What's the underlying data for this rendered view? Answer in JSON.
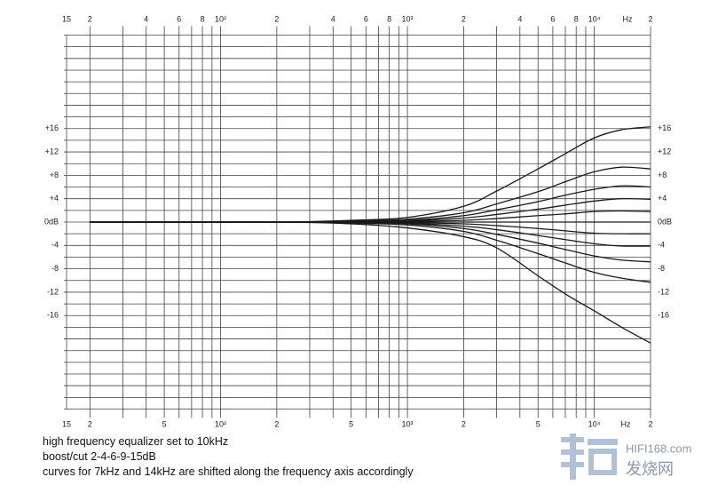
{
  "chart_data": {
    "type": "line",
    "xscale": "log",
    "xlim": [
      15,
      20000
    ],
    "ylim": [
      -32,
      32
    ],
    "xticks": [
      15,
      {
        "value": 20,
        "label": "2"
      },
      {
        "value": 40,
        "label": "4"
      },
      {
        "value": 60,
        "label": "6"
      },
      {
        "value": 80,
        "label": "8"
      },
      {
        "value": 100,
        "label": "10²"
      },
      {
        "value": 200,
        "label": "2"
      },
      {
        "value": 400,
        "label": "4"
      },
      {
        "value": 600,
        "label": "6"
      },
      {
        "value": 800,
        "label": "8"
      },
      {
        "value": 1000,
        "label": "10³"
      },
      {
        "value": 2000,
        "label": "2"
      },
      {
        "value": 4000,
        "label": "4"
      },
      {
        "value": 6000,
        "label": "6"
      },
      {
        "value": 8000,
        "label": "8"
      },
      {
        "value": 10000,
        "label": "10⁴"
      },
      {
        "value": 20000,
        "label": "2"
      }
    ],
    "xticks_bottom": [
      15,
      {
        "value": 20,
        "label": "2"
      },
      {
        "value": 50,
        "label": "5"
      },
      {
        "value": 100,
        "label": "10²"
      },
      {
        "value": 200,
        "label": "2"
      },
      {
        "value": 500,
        "label": "5"
      },
      {
        "value": 1000,
        "label": "10³"
      },
      {
        "value": 2000,
        "label": "2"
      },
      {
        "value": 5000,
        "label": "5"
      },
      {
        "value": 10000,
        "label": "10⁴"
      },
      {
        "value": 20000,
        "label": "2"
      }
    ],
    "x_unit": "Hz",
    "yticks": [
      {
        "value": 16,
        "label": "+16"
      },
      {
        "value": 12,
        "label": "+12"
      },
      {
        "value": 8,
        "label": "+8"
      },
      {
        "value": 4,
        "label": "+4"
      },
      {
        "value": 0,
        "label": "0dB"
      },
      -4,
      -8,
      -12,
      -16
    ],
    "xgrid": [
      20,
      30,
      40,
      50,
      60,
      70,
      80,
      90,
      100,
      200,
      300,
      400,
      500,
      600,
      700,
      800,
      900,
      1000,
      2000,
      3000,
      4000,
      5000,
      6000,
      7000,
      8000,
      9000,
      10000,
      20000
    ],
    "ygrid": [
      -32,
      -30,
      -28,
      -26,
      -24,
      -22,
      -20,
      -18,
      -16,
      -14,
      -12,
      -10,
      -8,
      -6,
      -4,
      -2,
      0,
      2,
      4,
      6,
      8,
      10,
      12,
      14,
      16,
      18,
      20,
      22,
      24,
      26,
      28,
      30,
      32
    ],
    "grid": true,
    "color": "#1a1a1a",
    "x": [
      20,
      200,
      500,
      1000,
      2000,
      3000,
      5000,
      7000,
      10000,
      14000,
      20000
    ],
    "series": [
      {
        "values": [
          0,
          0,
          0.3,
          0.8,
          2.7,
          5.3,
          9.1,
          11.7,
          14.4,
          15.8,
          16.3
        ]
      },
      {
        "values": [
          0,
          0,
          0.2,
          0.5,
          1.6,
          3.1,
          5.2,
          6.9,
          8.6,
          9.4,
          9.1
        ]
      },
      {
        "values": [
          0,
          0,
          0.1,
          0.3,
          1.1,
          2.1,
          3.5,
          4.6,
          5.6,
          6.2,
          6.0
        ]
      },
      {
        "values": [
          0,
          0,
          0.1,
          0.2,
          0.7,
          1.3,
          2.2,
          2.9,
          3.6,
          4.0,
          3.9
        ]
      },
      {
        "values": [
          0,
          0,
          0,
          0.1,
          0.3,
          0.6,
          1.1,
          1.4,
          1.8,
          1.9,
          1.8
        ]
      },
      {
        "values": [
          0,
          0,
          0,
          0,
          0,
          0,
          0,
          0,
          0,
          0,
          0
        ]
      },
      {
        "values": [
          0,
          0,
          0,
          -0.1,
          -0.3,
          -0.6,
          -1.1,
          -1.5,
          -1.9,
          -2.0,
          -2.0
        ]
      },
      {
        "values": [
          0,
          0,
          -0.1,
          -0.2,
          -0.7,
          -1.3,
          -2.3,
          -3.0,
          -3.7,
          -4.1,
          -4.1
        ]
      },
      {
        "values": [
          0,
          0,
          -0.1,
          -0.3,
          -1.1,
          -2.1,
          -3.6,
          -4.7,
          -5.8,
          -6.5,
          -6.8
        ]
      },
      {
        "values": [
          0,
          0,
          -0.2,
          -0.5,
          -1.6,
          -3.1,
          -5.4,
          -7.0,
          -8.6,
          -9.6,
          -10.3
        ]
      },
      {
        "values": [
          0,
          0,
          -0.3,
          -1.0,
          -2.5,
          -4.4,
          -9.2,
          -12.3,
          -15.2,
          -18.0,
          -20.7
        ]
      }
    ],
    "caption": [
      "high frequency equalizer set to 10kHz",
      "boost/cut 2-4-6-9-15dB",
      "curves for 7kHz and 14kHz are shifted along the frequency axis accordingly"
    ]
  },
  "watermark": {
    "site": "HIFI168.com",
    "name": "发烧网"
  }
}
